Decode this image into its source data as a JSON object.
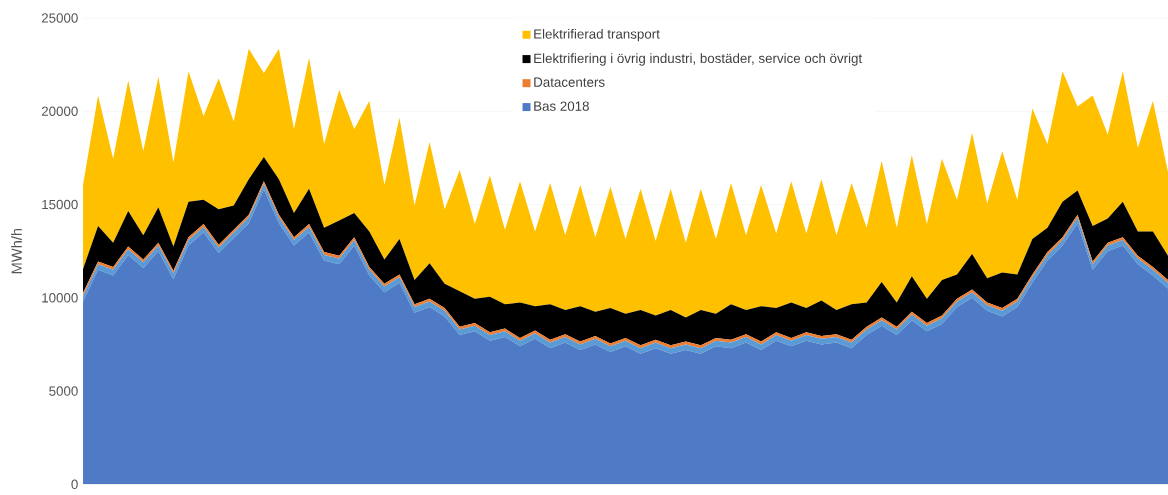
{
  "chart_data": {
    "type": "area",
    "stacked": true,
    "ylabel": "MWh/h",
    "grid": "y",
    "legend": "top",
    "tick_labels": "y",
    "ylim": [
      0,
      25000
    ],
    "yticks": [
      0,
      5000,
      10000,
      15000,
      20000,
      25000
    ],
    "categories": [
      null,
      null,
      null,
      null,
      null,
      null,
      null,
      null,
      null,
      null,
      null,
      null,
      null,
      null,
      null,
      null,
      null,
      null,
      null,
      null,
      null,
      null,
      null,
      null,
      null,
      null,
      null,
      null,
      null,
      null,
      null,
      null,
      null,
      null,
      null,
      null,
      null,
      null,
      null,
      null,
      null,
      null,
      null,
      null,
      null,
      null,
      null,
      null,
      null,
      null,
      null,
      null,
      null,
      null,
      null,
      null,
      null,
      null,
      null,
      null,
      null,
      null,
      null,
      null,
      null,
      null,
      null,
      null,
      null,
      null,
      null,
      null,
      null
    ],
    "series": [
      {
        "name": "Bas 2018",
        "color": "#4f7bc6",
        "values": [
          9800,
          11500,
          11200,
          12300,
          11600,
          12500,
          11000,
          12800,
          13500,
          12400,
          13200,
          14000,
          15800,
          14000,
          12800,
          13500,
          12000,
          11800,
          12800,
          11200,
          10300,
          10800,
          9200,
          9500,
          9000,
          8000,
          8200,
          7700,
          7900,
          7400,
          7800,
          7300,
          7600,
          7200,
          7500,
          7100,
          7400,
          7000,
          7300,
          7000,
          7200,
          7000,
          7400,
          7300,
          7600,
          7200,
          7700,
          7400,
          7700,
          7500,
          7600,
          7300,
          8000,
          8500,
          8000,
          8800,
          8200,
          8600,
          9500,
          10000,
          9300,
          9000,
          9500,
          10800,
          12000,
          12800,
          14000,
          11500,
          12500,
          12800,
          11800,
          11200,
          10500
        ]
      },
      {
        "color": "#5b9bd5",
        "values": [
          300,
          300,
          300,
          300,
          300,
          300,
          300,
          300,
          300,
          300,
          300,
          300,
          300,
          300,
          300,
          300,
          300,
          300,
          300,
          300,
          300,
          300,
          300,
          300,
          300,
          300,
          300,
          300,
          300,
          300,
          300,
          300,
          300,
          300,
          300,
          300,
          300,
          300,
          300,
          300,
          300,
          300,
          300,
          300,
          300,
          300,
          300,
          300,
          300,
          300,
          300,
          300,
          300,
          300,
          300,
          300,
          300,
          300,
          300,
          300,
          300,
          300,
          300,
          300,
          300,
          300,
          300,
          300,
          300,
          300,
          300,
          300,
          300
        ]
      },
      {
        "name": "Datacenters",
        "color": "#ed7d31",
        "values": [
          150,
          150,
          150,
          150,
          150,
          150,
          150,
          150,
          150,
          150,
          150,
          150,
          150,
          150,
          150,
          150,
          150,
          150,
          150,
          150,
          150,
          150,
          150,
          150,
          150,
          150,
          150,
          150,
          150,
          150,
          150,
          150,
          150,
          150,
          150,
          150,
          150,
          150,
          150,
          150,
          150,
          150,
          150,
          150,
          150,
          150,
          150,
          150,
          150,
          150,
          150,
          150,
          150,
          150,
          150,
          150,
          150,
          150,
          150,
          150,
          150,
          150,
          150,
          150,
          150,
          150,
          150,
          150,
          150,
          150,
          150,
          150,
          150
        ]
      },
      {
        "name": "Elektrifiering i övrig industri, bostäder, service och övrigt",
        "color": "#000000",
        "values": [
          1300,
          1900,
          1300,
          1900,
          1300,
          1900,
          1300,
          1900,
          1300,
          1900,
          1300,
          1900,
          1300,
          1900,
          1300,
          1900,
          1300,
          1900,
          1300,
          1900,
          1300,
          1900,
          1300,
          1900,
          1300,
          1900,
          1300,
          1900,
          1300,
          1900,
          1300,
          1900,
          1300,
          1900,
          1300,
          1900,
          1300,
          1900,
          1300,
          1900,
          1300,
          1900,
          1300,
          1900,
          1300,
          1900,
          1300,
          1900,
          1300,
          1900,
          1300,
          1900,
          1300,
          1900,
          1300,
          1900,
          1300,
          1900,
          1300,
          1900,
          1300,
          1900,
          1300,
          1900,
          1300,
          1900,
          1300,
          1900,
          1300,
          1900,
          1300,
          1900,
          1300
        ]
      },
      {
        "name": "Elektrifierad transport",
        "color": "#ffc000",
        "values": [
          4500,
          7000,
          4500,
          7000,
          4500,
          7000,
          4500,
          7000,
          4500,
          7000,
          4500,
          7000,
          4500,
          7000,
          4500,
          7000,
          4500,
          7000,
          4500,
          7000,
          4000,
          6500,
          4000,
          6500,
          4000,
          6500,
          4000,
          6500,
          4000,
          6500,
          4000,
          6500,
          4000,
          6500,
          4000,
          6500,
          4000,
          6500,
          4000,
          6500,
          4000,
          6500,
          4000,
          6500,
          4000,
          6500,
          4000,
          6500,
          4000,
          6500,
          4000,
          6500,
          4000,
          6500,
          4000,
          6500,
          4000,
          6500,
          4000,
          6500,
          4000,
          6500,
          4000,
          7000,
          4500,
          7000,
          4500,
          7000,
          4500,
          7000,
          4500,
          7000,
          4500
        ]
      }
    ]
  }
}
